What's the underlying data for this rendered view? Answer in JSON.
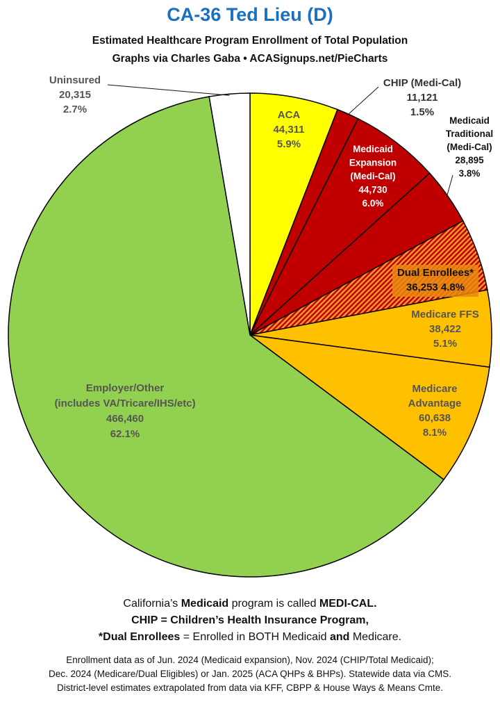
{
  "header": {
    "title": "CA-36 Ted Lieu (D)",
    "subtitle1": "Estimated Healthcare Program Enrollment of Total Population",
    "subtitle2": "Graphs via Charles Gaba   •   ACASignups.net/PieCharts"
  },
  "chart_data": {
    "type": "pie",
    "start": "12 o'clock",
    "direction": "clockwise",
    "slices": [
      {
        "name": "ACA",
        "value": 44311,
        "value_label": "44,311",
        "percent": "5.9%",
        "color": "#ffff00"
      },
      {
        "name": "CHIP (Medi-Cal)",
        "value": 11121,
        "value_label": "11,121",
        "percent": "1.5%",
        "color": "#c00000"
      },
      {
        "name": "Medicaid Expansion (Medi-Cal)",
        "value": 44730,
        "value_label": "44,730",
        "percent": "6.0%",
        "color": "#c00000"
      },
      {
        "name": "Medicaid Traditional (Medi-Cal)",
        "value": 28895,
        "value_label": "28,895",
        "percent": "3.8%",
        "color": "#c00000"
      },
      {
        "name": "Dual Enrollees*",
        "value": 36253,
        "value_label": "36,253",
        "percent": "4.8%",
        "color": "#e07000",
        "pattern": "hatched"
      },
      {
        "name": "Medicare FFS",
        "value": 38422,
        "value_label": "38,422",
        "percent": "5.1%",
        "color": "#ffc000"
      },
      {
        "name": "Medicare Advantage",
        "value": 60638,
        "value_label": "60,638",
        "percent": "8.1%",
        "color": "#ffc000"
      },
      {
        "name": "Employer/Other (includes VA/Tricare/IHS/etc)",
        "value": 466460,
        "value_label": "466,460",
        "percent": "62.1%",
        "color": "#92d050"
      },
      {
        "name": "Uninsured",
        "value": 20315,
        "value_label": "20,315",
        "percent": "2.7%",
        "color": "#ffffff"
      }
    ]
  },
  "notes": {
    "line1_a": "California’s ",
    "line1_b": "Medicaid",
    "line1_c": " program is called ",
    "line1_d": "MEDI-CAL.",
    "line2": "CHIP = Children’s Health Insurance Program,",
    "line3_a": "*Dual Enrollees",
    "line3_b": " = Enrolled in BOTH Medicaid ",
    "line3_c": "and",
    "line3_d": " Medicare."
  },
  "source": {
    "line1": "Enrollment data as of Jun. 2024 (Medicaid expansion), Nov. 2024 (CHIP/Total Medicaid);",
    "line2": "Dec. 2024 (Medicare/Dual Eligibles) or Jan. 2025 (ACA QHPs & BHPs). Statewide data via CMS.",
    "line3": "District-level estimates extrapolated from data via KFF, CBPP & House Ways & Means Cmte."
  }
}
